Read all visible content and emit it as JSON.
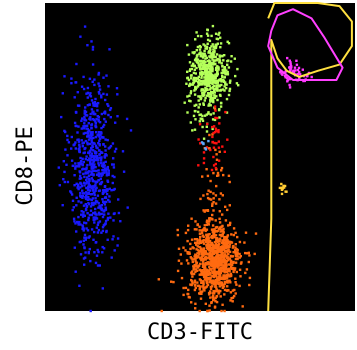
{
  "chart_data": {
    "type": "scatter",
    "title": "",
    "xlabel": "CD3-FITC",
    "ylabel": "CD8-PE",
    "background": "#000000",
    "grid": false,
    "legend": "none",
    "xlim": [
      0,
      100
    ],
    "ylim": [
      0,
      100
    ],
    "series": [
      {
        "color": "#1a1aff",
        "clusters": [
          {
            "cx": 15.5,
            "cy": 47,
            "sx": 3.8,
            "sy": 15,
            "count": 700
          }
        ]
      },
      {
        "color": "#b5ff5a",
        "clusters": [
          {
            "cx": 53,
            "cy": 77,
            "sx": 3.2,
            "sy": 5.5,
            "count": 520
          },
          {
            "cx": 51,
            "cy": 62,
            "sx": 2.5,
            "sy": 4,
            "count": 25
          }
        ]
      },
      {
        "color": "#ff6a10",
        "clusters": [
          {
            "cx": 54.5,
            "cy": 16,
            "sx": 4.3,
            "sy": 6.5,
            "count": 900
          },
          {
            "cx": 53.5,
            "cy": 40,
            "sx": 2.6,
            "sy": 9,
            "count": 55
          }
        ]
      },
      {
        "color": "#ff1010",
        "clusters": [
          {
            "cx": 55,
            "cy": 55,
            "sx": 2.2,
            "sy": 6,
            "count": 40
          }
        ]
      },
      {
        "color": "#5fa8ff",
        "clusters": [
          {
            "cx": 51.5,
            "cy": 54.5,
            "sx": 1,
            "sy": 1,
            "count": 6
          }
        ]
      },
      {
        "color": "#ffcc33",
        "clusters": [
          {
            "cx": 77,
            "cy": 39.5,
            "sx": 0.8,
            "sy": 0.8,
            "count": 14
          }
        ]
      },
      {
        "color": "#ff33ff",
        "clusters": [
          {
            "cx": 81,
            "cy": 77,
            "sx": 2.2,
            "sy": 2,
            "count": 55
          }
        ]
      }
    ],
    "gates": [
      {
        "color": "#ffe040",
        "points": [
          [
            72,
            95
          ],
          [
            74,
            100
          ],
          [
            80,
            100
          ],
          [
            88,
            100
          ],
          [
            95,
            99
          ],
          [
            99,
            94
          ],
          [
            99,
            86
          ],
          [
            95,
            80
          ],
          [
            88,
            78
          ],
          [
            82,
            76
          ],
          [
            78,
            78
          ],
          [
            75,
            82
          ],
          [
            73,
            88
          ],
          [
            73,
            60
          ],
          [
            73,
            30
          ],
          [
            72,
            0
          ]
        ]
      },
      {
        "color": "#ff40ff",
        "points": [
          [
            73,
            91
          ],
          [
            75,
            96
          ],
          [
            80,
            98
          ],
          [
            86,
            95
          ],
          [
            90,
            89
          ],
          [
            93,
            84
          ],
          [
            96,
            79
          ],
          [
            94,
            75
          ],
          [
            86,
            75
          ],
          [
            80,
            75
          ],
          [
            75,
            79
          ],
          [
            72,
            86
          ],
          [
            73,
            91
          ]
        ]
      }
    ]
  }
}
